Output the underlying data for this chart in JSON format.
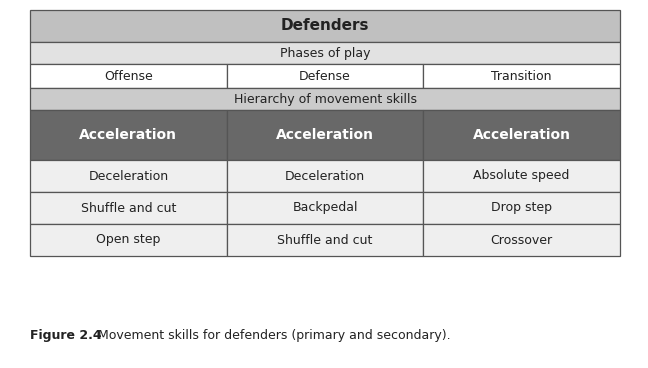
{
  "title": "Defenders",
  "phases_label": "Phases of play",
  "hierarchy_label": "Hierarchy of movement skills",
  "columns": [
    "Offense",
    "Defense",
    "Transition"
  ],
  "primary_row": [
    "Acceleration",
    "Acceleration",
    "Acceleration"
  ],
  "data_rows": [
    [
      "Deceleration",
      "Deceleration",
      "Absolute speed"
    ],
    [
      "Shuffle and cut",
      "Backpedal",
      "Drop step"
    ],
    [
      "Open step",
      "Shuffle and cut",
      "Crossover"
    ]
  ],
  "color_header": "#c0c0c0",
  "color_phases": "#e2e2e2",
  "color_columns": "#ffffff",
  "color_hierarchy": "#cbcbcb",
  "color_primary": "#686868",
  "color_data": "#efefef",
  "border_color": "#555555",
  "text_primary_color": "#ffffff",
  "text_dark_color": "#222222",
  "caption_bold": "Figure 2.4",
  "caption_normal": "    Movement skills for defenders (primary and secondary).",
  "fig_width": 6.48,
  "fig_height": 3.68
}
